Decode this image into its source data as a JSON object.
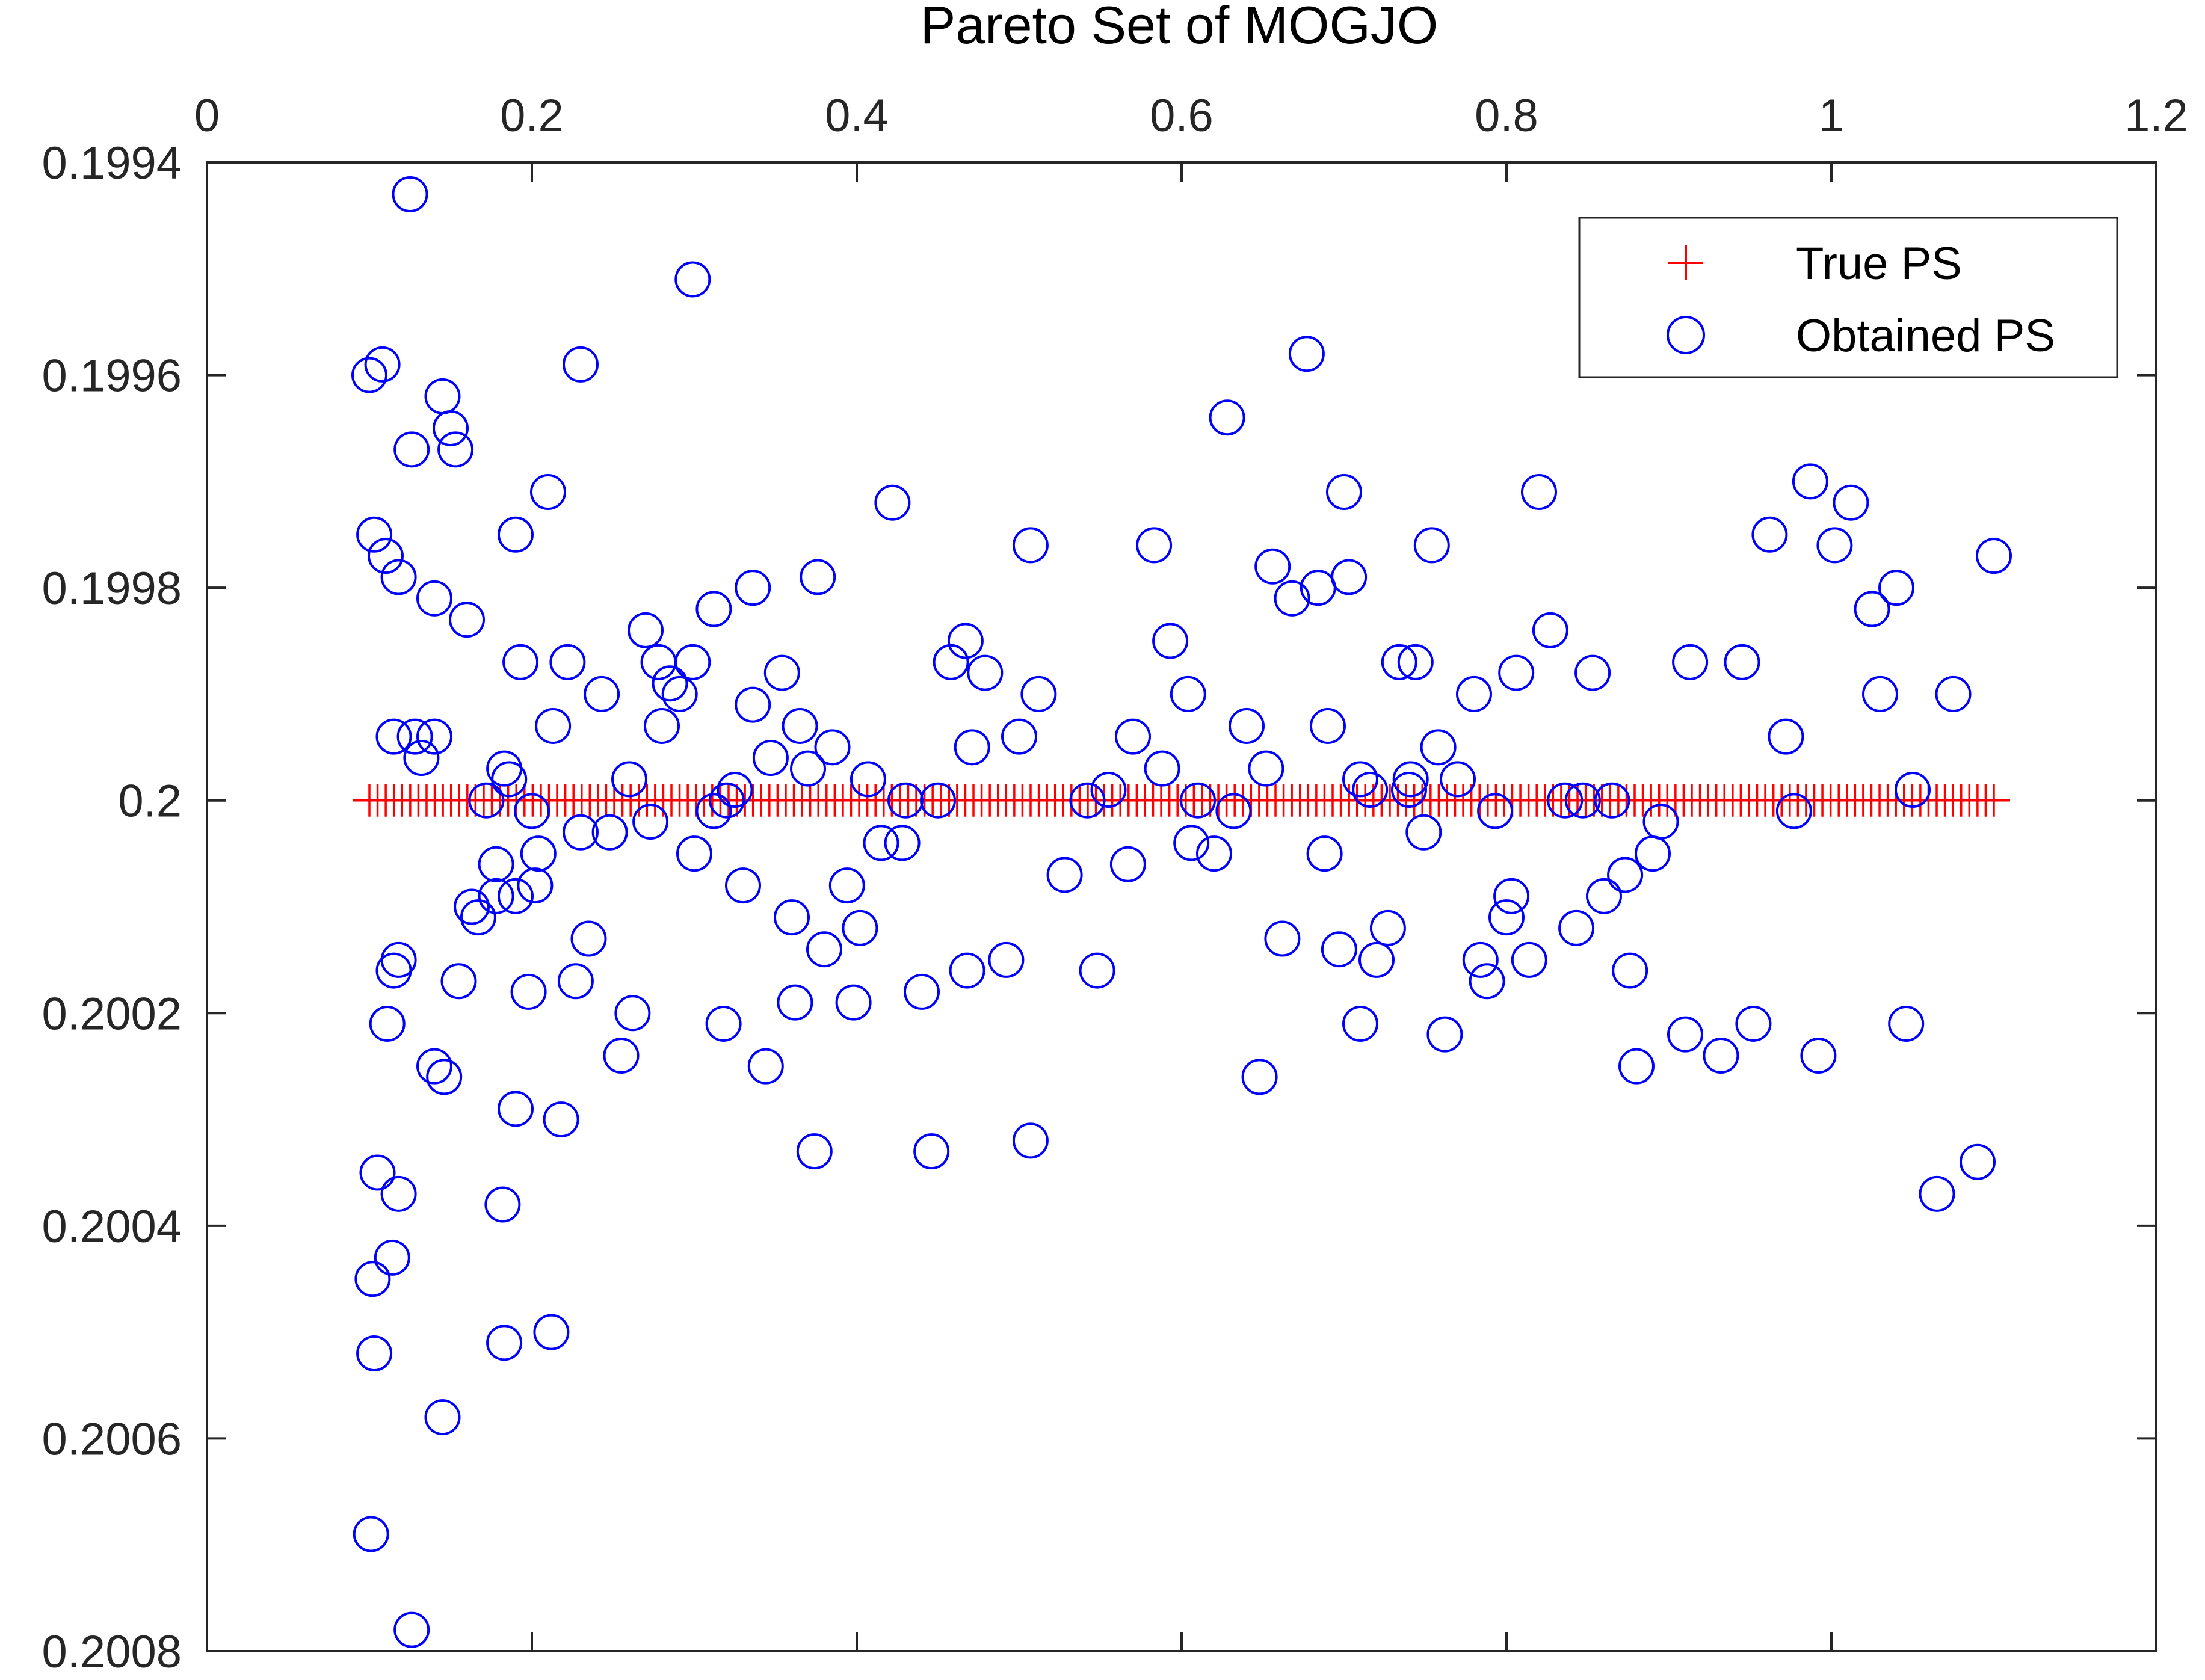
{
  "chart_data": {
    "type": "scatter",
    "title": "Pareto Set of MOGJO",
    "xlabel": "",
    "ylabel": "",
    "xlim": [
      0,
      1.2
    ],
    "ylim": [
      0.1994,
      0.2008
    ],
    "y_reversed": true,
    "x_axis_location": "top",
    "grid": false,
    "legend_placement": "top-right",
    "x_ticks": [
      "0",
      "0.2",
      "0.4",
      "0.6",
      "0.8",
      "1",
      "1.2"
    ],
    "y_ticks": [
      "0.1994",
      "0.1996",
      "0.1998",
      "0.2",
      "0.2002",
      "0.2004",
      "0.2006",
      "0.2008"
    ],
    "series": [
      {
        "name": "True PS",
        "marker": "plus",
        "color": "#ff0000",
        "x_range": [
          0.1,
          1.1
        ],
        "y_const": 0.2,
        "count": 200
      },
      {
        "name": "Obtained PS",
        "marker": "circle",
        "color": "#0000ff",
        "points": [
          [
            0.125,
            0.19943
          ],
          [
            0.299,
            0.19951
          ],
          [
            0.1,
            0.1996
          ],
          [
            0.108,
            0.19959
          ],
          [
            0.23,
            0.19959
          ],
          [
            0.145,
            0.19962
          ],
          [
            0.15,
            0.19965
          ],
          [
            0.153,
            0.19967
          ],
          [
            0.126,
            0.19967
          ],
          [
            0.21,
            0.19971
          ],
          [
            0.103,
            0.19975
          ],
          [
            0.19,
            0.19975
          ],
          [
            0.11,
            0.19977
          ],
          [
            0.118,
            0.19979
          ],
          [
            0.14,
            0.19981
          ],
          [
            0.16,
            0.19983
          ],
          [
            0.193,
            0.19987
          ],
          [
            0.222,
            0.19987
          ],
          [
            0.243,
            0.1999
          ],
          [
            0.213,
            0.19993
          ],
          [
            0.115,
            0.19994
          ],
          [
            0.128,
            0.19994
          ],
          [
            0.14,
            0.19994
          ],
          [
            0.132,
            0.19996
          ],
          [
            0.183,
            0.19997
          ],
          [
            0.186,
            0.19998
          ],
          [
            0.172,
            0.2
          ],
          [
            0.2,
            0.20001
          ],
          [
            0.23,
            0.20003
          ],
          [
            0.248,
            0.20003
          ],
          [
            0.178,
            0.20006
          ],
          [
            0.204,
            0.20005
          ],
          [
            0.163,
            0.2001
          ],
          [
            0.167,
            0.20011
          ],
          [
            0.178,
            0.20009
          ],
          [
            0.19,
            0.20009
          ],
          [
            0.202,
            0.20008
          ],
          [
            0.235,
            0.20013
          ],
          [
            0.118,
            0.20015
          ],
          [
            0.115,
            0.20016
          ],
          [
            0.155,
            0.20017
          ],
          [
            0.227,
            0.20017
          ],
          [
            0.198,
            0.20018
          ],
          [
            0.111,
            0.20021
          ],
          [
            0.262,
            0.2002
          ],
          [
            0.255,
            0.20024
          ],
          [
            0.14,
            0.20025
          ],
          [
            0.146,
            0.20026
          ],
          [
            0.19,
            0.20029
          ],
          [
            0.218,
            0.2003
          ],
          [
            0.105,
            0.20035
          ],
          [
            0.118,
            0.20037
          ],
          [
            0.182,
            0.20038
          ],
          [
            0.114,
            0.20043
          ],
          [
            0.102,
            0.20045
          ],
          [
            0.103,
            0.20052
          ],
          [
            0.183,
            0.20051
          ],
          [
            0.212,
            0.2005
          ],
          [
            0.145,
            0.20058
          ],
          [
            0.101,
            0.20069
          ],
          [
            0.126,
            0.20078
          ],
          [
            0.27,
            0.19984
          ],
          [
            0.278,
            0.19987
          ],
          [
            0.285,
            0.19989
          ],
          [
            0.291,
            0.1999
          ],
          [
            0.299,
            0.19987
          ],
          [
            0.28,
            0.19993
          ],
          [
            0.312,
            0.19982
          ],
          [
            0.336,
            0.1998
          ],
          [
            0.376,
            0.19979
          ],
          [
            0.422,
            0.19972
          ],
          [
            0.507,
            0.19976
          ],
          [
            0.354,
            0.19988
          ],
          [
            0.336,
            0.19991
          ],
          [
            0.347,
            0.19996
          ],
          [
            0.365,
            0.19993
          ],
          [
            0.37,
            0.19997
          ],
          [
            0.385,
            0.19995
          ],
          [
            0.407,
            0.19998
          ],
          [
            0.26,
            0.19998
          ],
          [
            0.273,
            0.20002
          ],
          [
            0.312,
            0.20001
          ],
          [
            0.32,
            0.2
          ],
          [
            0.325,
            0.19999
          ],
          [
            0.43,
            0.2
          ],
          [
            0.45,
            0.2
          ],
          [
            0.3,
            0.20005
          ],
          [
            0.33,
            0.20008
          ],
          [
            0.415,
            0.20004
          ],
          [
            0.428,
            0.20004
          ],
          [
            0.36,
            0.20011
          ],
          [
            0.38,
            0.20014
          ],
          [
            0.394,
            0.20008
          ],
          [
            0.402,
            0.20012
          ],
          [
            0.362,
            0.20019
          ],
          [
            0.398,
            0.20019
          ],
          [
            0.318,
            0.20021
          ],
          [
            0.344,
            0.20025
          ],
          [
            0.374,
            0.20033
          ],
          [
            0.44,
            0.20018
          ],
          [
            0.468,
            0.20016
          ],
          [
            0.492,
            0.20015
          ],
          [
            0.446,
            0.20033
          ],
          [
            0.507,
            0.20032
          ],
          [
            0.458,
            0.19987
          ],
          [
            0.467,
            0.19985
          ],
          [
            0.479,
            0.19988
          ],
          [
            0.512,
            0.1999
          ],
          [
            0.471,
            0.19995
          ],
          [
            0.5,
            0.19994
          ],
          [
            0.528,
            0.20007
          ],
          [
            0.542,
            0.2
          ],
          [
            0.555,
            0.19999
          ],
          [
            0.567,
            0.20006
          ],
          [
            0.548,
            0.20016
          ],
          [
            0.57,
            0.19994
          ],
          [
            0.588,
            0.19997
          ],
          [
            0.583,
            0.19976
          ],
          [
            0.593,
            0.19985
          ],
          [
            0.604,
            0.1999
          ],
          [
            0.61,
            0.2
          ],
          [
            0.606,
            0.20004
          ],
          [
            0.62,
            0.20005
          ],
          [
            0.628,
            0.19964
          ],
          [
            0.64,
            0.19993
          ],
          [
            0.652,
            0.19997
          ],
          [
            0.656,
            0.19978
          ],
          [
            0.632,
            0.20001
          ],
          [
            0.648,
            0.20026
          ],
          [
            0.662,
            0.20013
          ],
          [
            0.668,
            0.19981
          ],
          [
            0.677,
            0.19958
          ],
          [
            0.684,
            0.1998
          ],
          [
            0.69,
            0.19993
          ],
          [
            0.688,
            0.20005
          ],
          [
            0.697,
            0.20014
          ],
          [
            0.7,
            0.19971
          ],
          [
            0.703,
            0.19979
          ],
          [
            0.71,
            0.19998
          ],
          [
            0.716,
            0.19999
          ],
          [
            0.72,
            0.20015
          ],
          [
            0.727,
            0.20012
          ],
          [
            0.734,
            0.19987
          ],
          [
            0.741,
            0.19998
          ],
          [
            0.744,
            0.19987
          ],
          [
            0.749,
            0.20003
          ],
          [
            0.754,
            0.19976
          ],
          [
            0.758,
            0.19995
          ],
          [
            0.77,
            0.19998
          ],
          [
            0.74,
            0.19999
          ],
          [
            0.71,
            0.20021
          ],
          [
            0.762,
            0.20022
          ],
          [
            0.78,
            0.1999
          ],
          [
            0.784,
            0.20015
          ],
          [
            0.788,
            0.20017
          ],
          [
            0.793,
            0.20001
          ],
          [
            0.8,
            0.20011
          ],
          [
            0.803,
            0.20009
          ],
          [
            0.806,
            0.19988
          ],
          [
            0.814,
            0.20015
          ],
          [
            0.82,
            0.19971
          ],
          [
            0.827,
            0.19984
          ],
          [
            0.836,
            0.2
          ],
          [
            0.843,
            0.20012
          ],
          [
            0.847,
            0.2
          ],
          [
            0.853,
            0.19988
          ],
          [
            0.86,
            0.20009
          ],
          [
            0.865,
            0.2
          ],
          [
            0.873,
            0.20007
          ],
          [
            0.876,
            0.20016
          ],
          [
            0.88,
            0.20025
          ],
          [
            0.89,
            0.20005
          ],
          [
            0.895,
            0.20002
          ],
          [
            0.91,
            0.20022
          ],
          [
            0.913,
            0.19987
          ],
          [
            0.932,
            0.20024
          ],
          [
            0.945,
            0.19987
          ],
          [
            0.952,
            0.20021
          ],
          [
            0.962,
            0.19975
          ],
          [
            0.972,
            0.19994
          ],
          [
            0.977,
            0.20001
          ],
          [
            0.987,
            0.1997
          ],
          [
            0.992,
            0.20024
          ],
          [
            1.002,
            0.19976
          ],
          [
            1.012,
            0.19972
          ],
          [
            1.025,
            0.19982
          ],
          [
            1.03,
            0.1999
          ],
          [
            1.04,
            0.1998
          ],
          [
            1.046,
            0.20021
          ],
          [
            1.05,
            0.19999
          ],
          [
            1.065,
            0.20037
          ],
          [
            1.075,
            0.1999
          ],
          [
            1.09,
            0.20034
          ],
          [
            1.1,
            0.19977
          ]
        ]
      }
    ]
  }
}
